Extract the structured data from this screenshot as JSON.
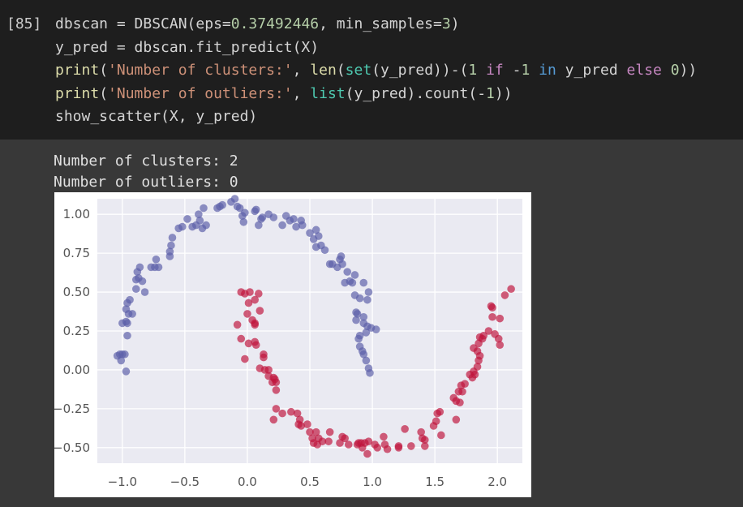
{
  "cell": {
    "execution_count": "[85]",
    "code": [
      [
        {
          "t": "dbscan = DBSCAN(eps=",
          "c": ""
        },
        {
          "t": "0.37492446",
          "c": "num"
        },
        {
          "t": ", min_samples=",
          "c": ""
        },
        {
          "t": "3",
          "c": "num"
        },
        {
          "t": ")",
          "c": ""
        }
      ],
      [
        {
          "t": "y_pred = dbscan.fit_predict(X)",
          "c": ""
        }
      ],
      [
        {
          "t": "print",
          "c": "fn"
        },
        {
          "t": "(",
          "c": ""
        },
        {
          "t": "'Number of clusters:'",
          "c": "str"
        },
        {
          "t": ", ",
          "c": ""
        },
        {
          "t": "len",
          "c": "fn"
        },
        {
          "t": "(",
          "c": ""
        },
        {
          "t": "set",
          "c": "bi"
        },
        {
          "t": "(y_pred))-(",
          "c": ""
        },
        {
          "t": "1",
          "c": "num"
        },
        {
          "t": " ",
          "c": ""
        },
        {
          "t": "if",
          "c": "kw"
        },
        {
          "t": " -",
          "c": ""
        },
        {
          "t": "1",
          "c": "num"
        },
        {
          "t": " ",
          "c": ""
        },
        {
          "t": "in",
          "c": "kwb"
        },
        {
          "t": " y_pred ",
          "c": ""
        },
        {
          "t": "else",
          "c": "kw"
        },
        {
          "t": " ",
          "c": ""
        },
        {
          "t": "0",
          "c": "num"
        },
        {
          "t": "))",
          "c": ""
        }
      ],
      [
        {
          "t": "print",
          "c": "fn"
        },
        {
          "t": "(",
          "c": ""
        },
        {
          "t": "'Number of outliers:'",
          "c": "str"
        },
        {
          "t": ", ",
          "c": ""
        },
        {
          "t": "list",
          "c": "bi"
        },
        {
          "t": "(y_pred).count(-",
          "c": ""
        },
        {
          "t": "1",
          "c": "num"
        },
        {
          "t": "))",
          "c": ""
        }
      ],
      [
        {
          "t": "show_scatter(X, y_pred)",
          "c": ""
        }
      ]
    ]
  },
  "output": {
    "lines": [
      "Number of clusters: 2",
      "Number of outliers: 0"
    ]
  },
  "chart_data": {
    "type": "scatter",
    "title": "",
    "xlabel": "",
    "ylabel": "",
    "xlim": [
      -1.2,
      2.2
    ],
    "ylim": [
      -0.6,
      1.1
    ],
    "xticks": [
      -1.0,
      -0.5,
      0.0,
      0.5,
      1.0,
      1.5,
      2.0
    ],
    "xtick_labels": [
      "−1.0",
      "−0.5",
      "0.0",
      "0.5",
      "1.0",
      "1.5",
      "2.0"
    ],
    "yticks": [
      1.0,
      0.75,
      0.5,
      0.25,
      0.0,
      -0.25,
      -0.5
    ],
    "ytick_labels": [
      "1.00",
      "0.75",
      "0.50",
      "0.25",
      "0.00",
      "−0.25",
      "−0.50"
    ],
    "grid": true,
    "background": "#eaeaf2",
    "series": [
      {
        "color": "#5b5fa8",
        "points": [
          [
            -1.04,
            0.09
          ],
          [
            -1.02,
            0.1
          ],
          [
            -1.0,
            0.1
          ],
          [
            -0.98,
            0.1
          ],
          [
            -1.01,
            0.06
          ],
          [
            -0.97,
            -0.01
          ],
          [
            -1.0,
            0.3
          ],
          [
            -0.97,
            0.31
          ],
          [
            -0.96,
            0.3
          ],
          [
            -0.95,
            0.36
          ],
          [
            -0.97,
            0.39
          ],
          [
            -0.96,
            0.43
          ],
          [
            -0.94,
            0.45
          ],
          [
            -0.92,
            0.36
          ],
          [
            -0.96,
            0.22
          ],
          [
            -0.89,
            0.58
          ],
          [
            -0.88,
            0.63
          ],
          [
            -0.86,
            0.66
          ],
          [
            -0.89,
            0.52
          ],
          [
            -0.87,
            0.59
          ],
          [
            -0.84,
            0.57
          ],
          [
            -0.82,
            0.5
          ],
          [
            -0.77,
            0.66
          ],
          [
            -0.74,
            0.66
          ],
          [
            -0.71,
            0.66
          ],
          [
            -0.73,
            0.71
          ],
          [
            -0.62,
            0.73
          ],
          [
            -0.62,
            0.76
          ],
          [
            -0.61,
            0.8
          ],
          [
            -0.6,
            0.85
          ],
          [
            -0.55,
            0.91
          ],
          [
            -0.52,
            0.92
          ],
          [
            -0.48,
            0.97
          ],
          [
            -0.44,
            0.92
          ],
          [
            -0.41,
            0.93
          ],
          [
            -0.36,
            0.91
          ],
          [
            -0.38,
            0.96
          ],
          [
            -0.39,
            1.0
          ],
          [
            -0.35,
            1.04
          ],
          [
            -0.33,
            0.93
          ],
          [
            -0.24,
            1.04
          ],
          [
            -0.22,
            1.05
          ],
          [
            -0.2,
            1.06
          ],
          [
            -0.13,
            1.08
          ],
          [
            -0.1,
            1.1
          ],
          [
            -0.08,
            1.05
          ],
          [
            -0.06,
            1.04
          ],
          [
            -0.04,
            0.99
          ],
          [
            -0.03,
            0.95
          ],
          [
            -0.02,
            1.01
          ],
          [
            0.06,
            1.02
          ],
          [
            0.07,
            1.03
          ],
          [
            0.11,
            0.97
          ],
          [
            0.12,
            0.98
          ],
          [
            0.09,
            0.93
          ],
          [
            0.17,
            1.0
          ],
          [
            0.21,
            0.98
          ],
          [
            0.28,
            0.93
          ],
          [
            0.31,
            0.99
          ],
          [
            0.34,
            0.96
          ],
          [
            0.37,
            0.97
          ],
          [
            0.39,
            0.92
          ],
          [
            0.43,
            0.96
          ],
          [
            0.44,
            0.93
          ],
          [
            0.5,
            0.88
          ],
          [
            0.55,
            0.9
          ],
          [
            0.57,
            0.86
          ],
          [
            0.53,
            0.84
          ],
          [
            0.55,
            0.79
          ],
          [
            0.59,
            0.8
          ],
          [
            0.62,
            0.77
          ],
          [
            0.66,
            0.68
          ],
          [
            0.68,
            0.68
          ],
          [
            0.72,
            0.66
          ],
          [
            0.74,
            0.71
          ],
          [
            0.75,
            0.73
          ],
          [
            0.76,
            0.68
          ],
          [
            0.8,
            0.63
          ],
          [
            0.86,
            0.61
          ],
          [
            0.82,
            0.57
          ],
          [
            0.78,
            0.56
          ],
          [
            0.84,
            0.56
          ],
          [
            0.93,
            0.56
          ],
          [
            0.86,
            0.48
          ],
          [
            0.9,
            0.46
          ],
          [
            0.97,
            0.5
          ],
          [
            0.96,
            0.45
          ],
          [
            0.87,
            0.37
          ],
          [
            0.88,
            0.36
          ],
          [
            0.87,
            0.32
          ],
          [
            0.93,
            0.34
          ],
          [
            0.93,
            0.3
          ],
          [
            0.96,
            0.28
          ],
          [
            0.99,
            0.27
          ],
          [
            1.03,
            0.26
          ],
          [
            0.95,
            0.24
          ],
          [
            0.9,
            0.22
          ],
          [
            0.89,
            0.2
          ],
          [
            0.9,
            0.15
          ],
          [
            0.92,
            0.12
          ],
          [
            0.93,
            0.1
          ],
          [
            0.95,
            0.06
          ],
          [
            0.97,
            0.01
          ],
          [
            0.98,
            -0.02
          ]
        ]
      },
      {
        "color": "#c0143c",
        "points": [
          [
            -0.05,
            0.5
          ],
          [
            -0.02,
            0.49
          ],
          [
            0.02,
            0.5
          ],
          [
            0.09,
            0.49
          ],
          [
            0.01,
            0.43
          ],
          [
            0.06,
            0.45
          ],
          [
            0.1,
            0.38
          ],
          [
            -0.08,
            0.29
          ],
          [
            0.0,
            0.36
          ],
          [
            0.04,
            0.32
          ],
          [
            0.06,
            0.3
          ],
          [
            0.06,
            0.29
          ],
          [
            -0.05,
            0.2
          ],
          [
            0.01,
            0.17
          ],
          [
            0.06,
            0.18
          ],
          [
            0.07,
            0.16
          ],
          [
            -0.02,
            0.07
          ],
          [
            0.13,
            0.1
          ],
          [
            0.13,
            0.08
          ],
          [
            0.1,
            0.01
          ],
          [
            0.14,
            0.0
          ],
          [
            0.17,
            0.0
          ],
          [
            0.17,
            -0.04
          ],
          [
            0.21,
            -0.05
          ],
          [
            0.22,
            -0.06
          ],
          [
            0.23,
            -0.08
          ],
          [
            0.2,
            -0.08
          ],
          [
            0.23,
            -0.13
          ],
          [
            0.23,
            -0.25
          ],
          [
            0.28,
            -0.28
          ],
          [
            0.21,
            -0.32
          ],
          [
            0.35,
            -0.27
          ],
          [
            0.4,
            -0.28
          ],
          [
            0.42,
            -0.32
          ],
          [
            0.41,
            -0.35
          ],
          [
            0.43,
            -0.36
          ],
          [
            0.48,
            -0.35
          ],
          [
            0.5,
            -0.4
          ],
          [
            0.52,
            -0.44
          ],
          [
            0.55,
            -0.4
          ],
          [
            0.57,
            -0.44
          ],
          [
            0.53,
            -0.47
          ],
          [
            0.56,
            -0.48
          ],
          [
            0.6,
            -0.46
          ],
          [
            0.65,
            -0.46
          ],
          [
            0.66,
            -0.4
          ],
          [
            0.76,
            -0.43
          ],
          [
            0.78,
            -0.44
          ],
          [
            0.74,
            -0.47
          ],
          [
            0.81,
            -0.48
          ],
          [
            0.89,
            -0.47
          ],
          [
            0.88,
            -0.48
          ],
          [
            0.91,
            -0.47
          ],
          [
            0.94,
            -0.47
          ],
          [
            0.92,
            -0.5
          ],
          [
            0.97,
            -0.46
          ],
          [
            0.96,
            -0.54
          ],
          [
            1.02,
            -0.48
          ],
          [
            1.04,
            -0.5
          ],
          [
            1.09,
            -0.43
          ],
          [
            1.1,
            -0.48
          ],
          [
            1.12,
            -0.51
          ],
          [
            1.21,
            -0.49
          ],
          [
            1.21,
            -0.5
          ],
          [
            1.26,
            -0.38
          ],
          [
            1.31,
            -0.49
          ],
          [
            1.39,
            -0.4
          ],
          [
            1.4,
            -0.44
          ],
          [
            1.42,
            -0.45
          ],
          [
            1.42,
            -0.49
          ],
          [
            1.49,
            -0.36
          ],
          [
            1.51,
            -0.33
          ],
          [
            1.52,
            -0.28
          ],
          [
            1.54,
            -0.27
          ],
          [
            1.55,
            -0.42
          ],
          [
            1.65,
            -0.18
          ],
          [
            1.67,
            -0.2
          ],
          [
            1.67,
            -0.32
          ],
          [
            1.69,
            -0.14
          ],
          [
            1.7,
            -0.21
          ],
          [
            1.71,
            -0.1
          ],
          [
            1.72,
            -0.14
          ],
          [
            1.74,
            -0.09
          ],
          [
            1.78,
            -0.03
          ],
          [
            1.8,
            -0.05
          ],
          [
            1.81,
            -0.01
          ],
          [
            1.82,
            -0.03
          ],
          [
            1.84,
            0.02
          ],
          [
            1.85,
            0.06
          ],
          [
            1.84,
            0.12
          ],
          [
            1.81,
            0.14
          ],
          [
            1.85,
            0.17
          ],
          [
            1.86,
            0.09
          ],
          [
            1.86,
            0.21
          ],
          [
            1.88,
            0.2
          ],
          [
            1.89,
            0.22
          ],
          [
            1.93,
            0.25
          ],
          [
            1.95,
            0.41
          ],
          [
            1.96,
            0.4
          ],
          [
            1.96,
            0.34
          ],
          [
            1.98,
            0.23
          ],
          [
            2.01,
            0.2
          ],
          [
            2.02,
            0.33
          ],
          [
            2.02,
            0.16
          ],
          [
            2.06,
            0.48
          ],
          [
            2.11,
            0.52
          ]
        ]
      }
    ]
  }
}
